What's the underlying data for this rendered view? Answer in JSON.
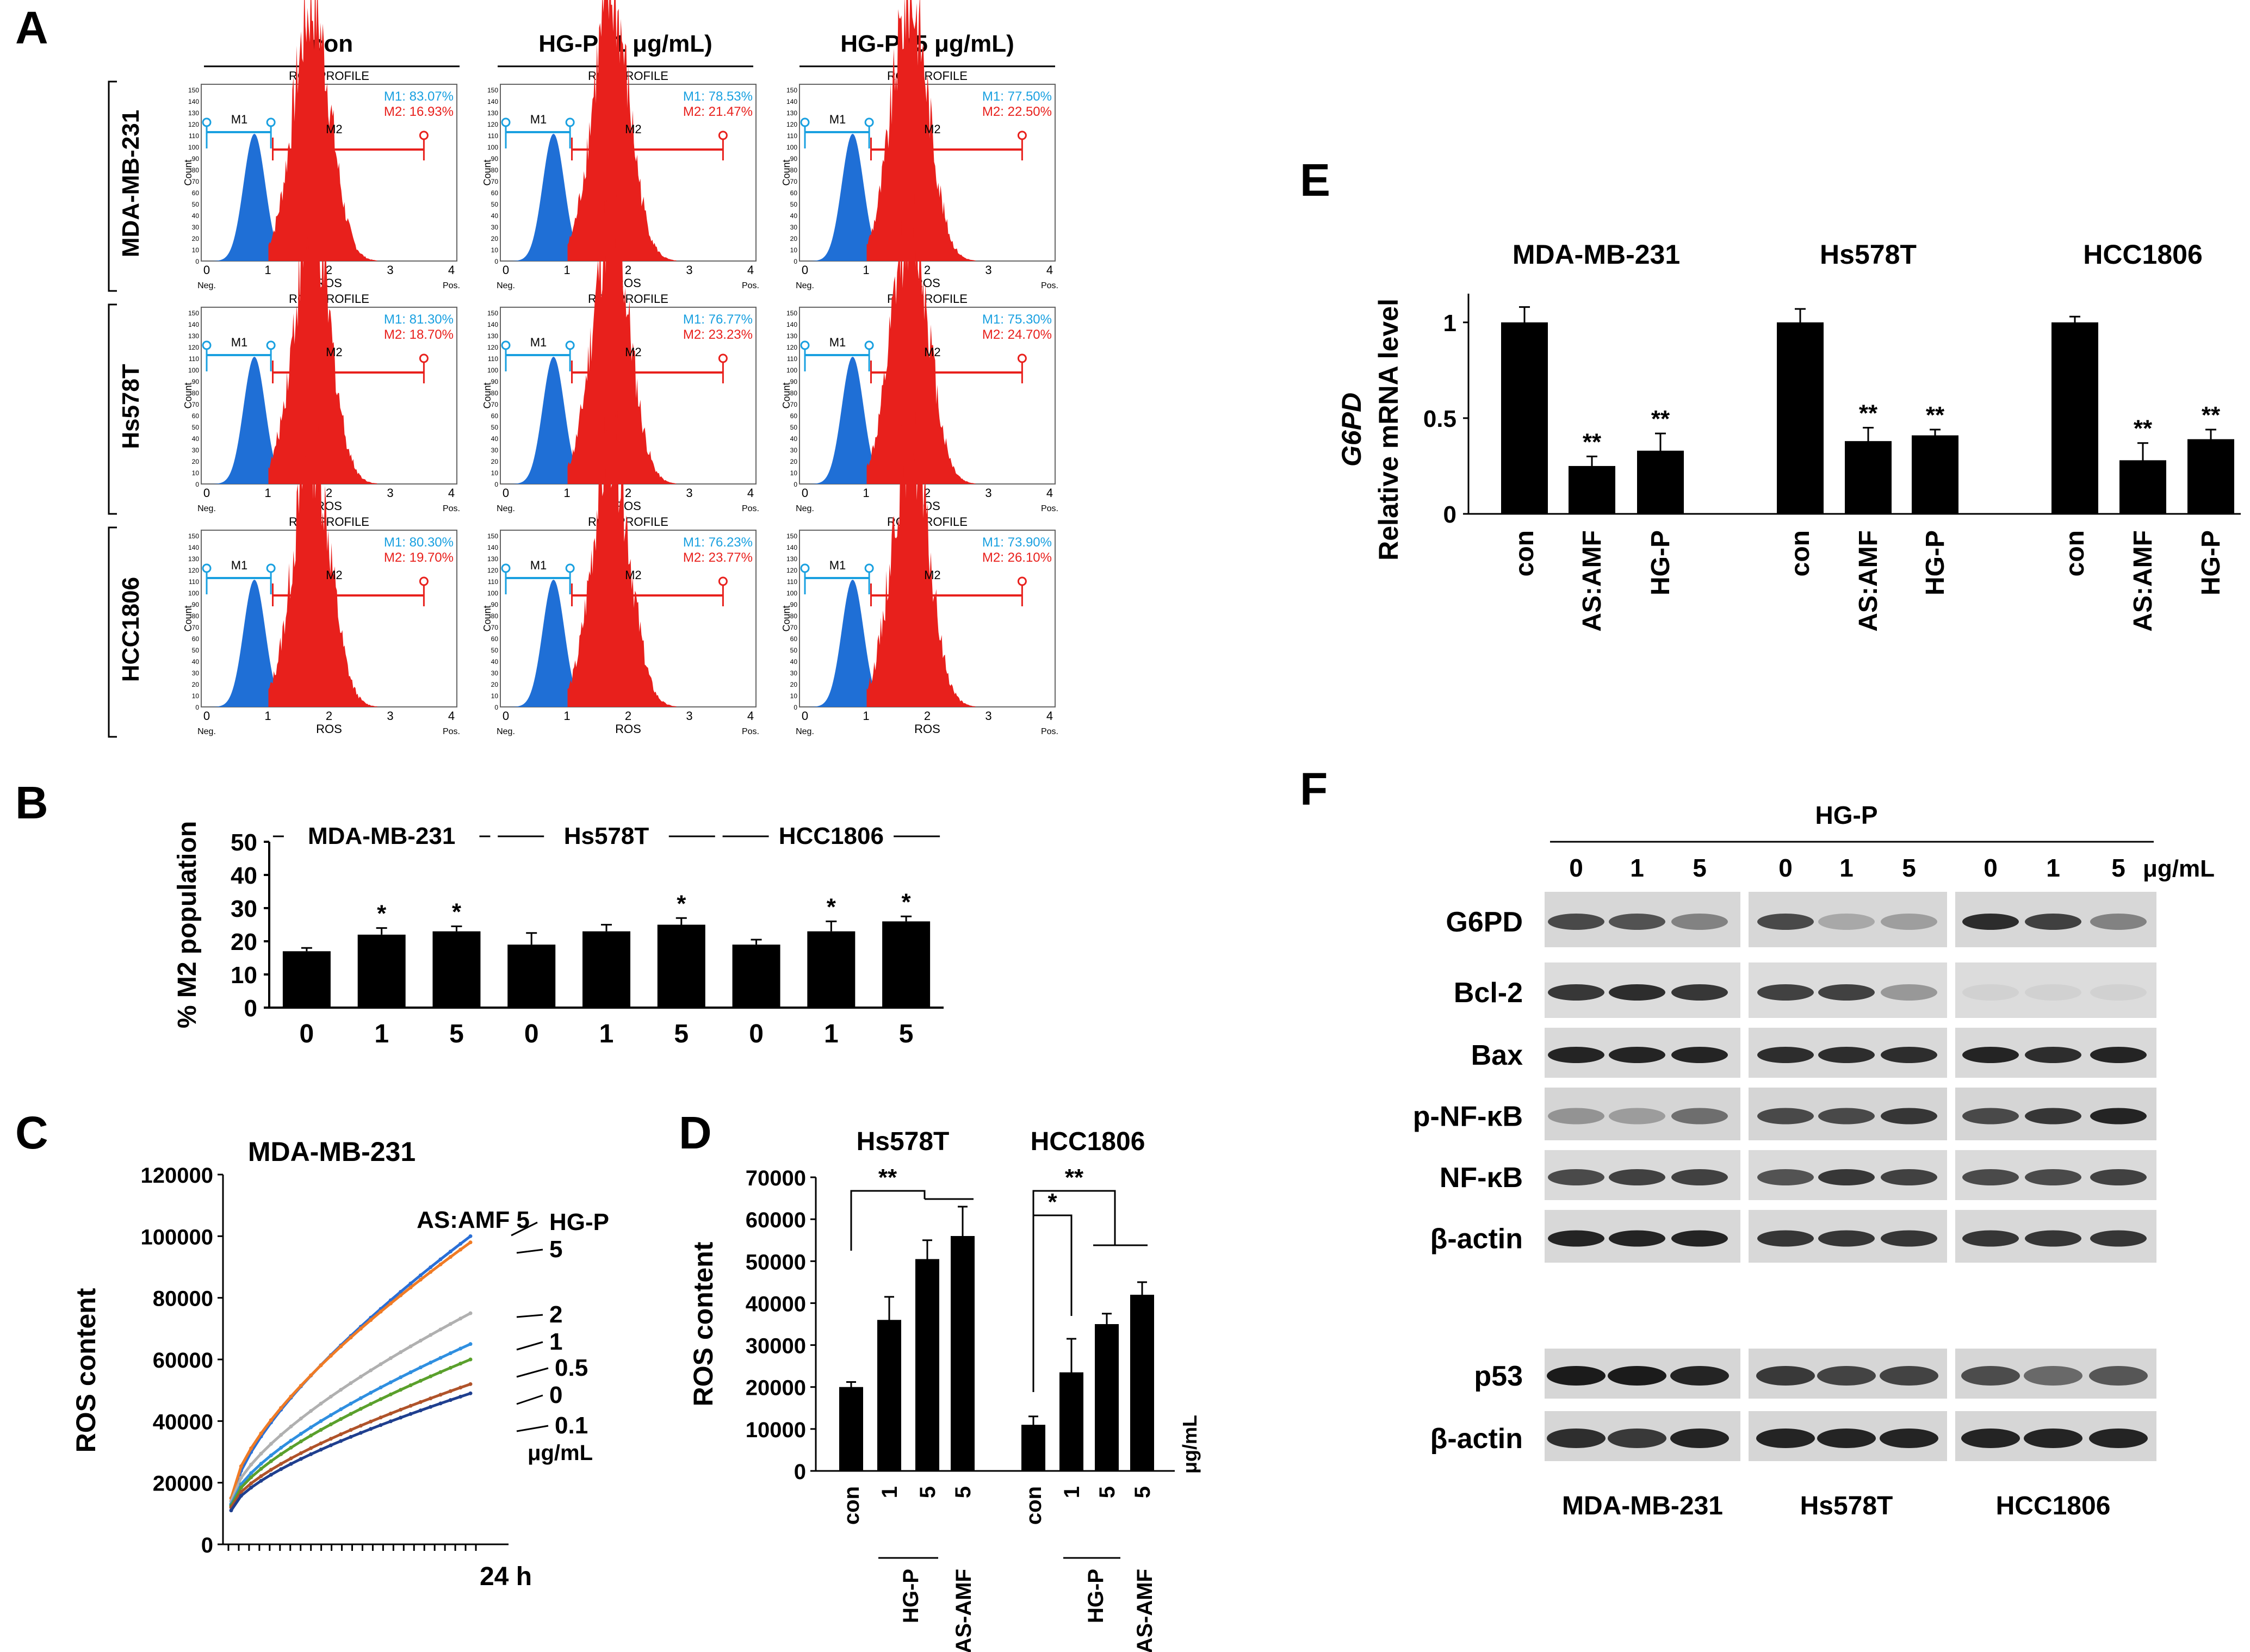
{
  "colors": {
    "blue": "#1f6fd6",
    "red": "#e8201c",
    "cyan": "#19a0e0",
    "black": "#000000",
    "gray": "#999999",
    "orange": "#f07b25",
    "green": "#5aa02c",
    "silver": "#b0b0b0",
    "brown": "#a0522d",
    "navy": "#1f3f8f"
  },
  "panelA": {
    "label": "A",
    "columns": [
      "con",
      "HG-P (1 μg/mL)",
      "HG-P (5 μg/mL)"
    ],
    "rows": [
      "MDA-MB-231",
      "Hs578T",
      "HCC1806"
    ],
    "profile_title": "ROS PROFILE",
    "xlabel": "ROS",
    "ylabel": "Count",
    "x_ticks": [
      "0",
      "1",
      "2",
      "3",
      "4"
    ],
    "neg": "Neg.",
    "pos": "Pos.",
    "m1": "M1",
    "m2": "M2",
    "stats": [
      [
        "M1: 83.07%",
        "M2: 16.93%",
        "M1: 78.53%",
        "M2: 21.47%",
        "M1: 77.50%",
        "M2: 22.50%"
      ],
      [
        "M1: 81.30%",
        "M2: 18.70%",
        "M1: 76.77%",
        "M2: 23.23%",
        "M1: 75.30%",
        "M2: 24.70%"
      ],
      [
        "M1: 80.30%",
        "M2: 19.70%",
        "M1: 76.23%",
        "M2: 23.77%",
        "M1: 73.90%",
        "M2: 26.10%"
      ]
    ]
  },
  "chart_data": [
    {
      "panel": "B",
      "type": "bar",
      "ylabel": "% M2 population",
      "ylim": [
        0,
        50
      ],
      "yticks": [
        "0",
        "10",
        "20",
        "30",
        "40",
        "50"
      ],
      "groups": [
        "MDA-MB-231",
        "Hs578T",
        "HCC1806"
      ],
      "categories": [
        "0",
        "1",
        "5",
        "0",
        "1",
        "5",
        "0",
        "1",
        "5"
      ],
      "values": [
        17,
        22,
        23,
        19,
        23,
        25,
        19,
        23,
        26
      ],
      "errors": [
        1,
        2,
        1.5,
        3.5,
        2,
        2,
        1.5,
        3,
        1.5
      ],
      "sig": [
        "",
        "*",
        "*",
        "",
        "",
        "*",
        "",
        "*",
        "*"
      ]
    },
    {
      "panel": "C",
      "type": "line",
      "title": "MDA-MB-231",
      "ylabel": "ROS content",
      "xlabel": "24 h",
      "ylim": [
        0,
        120000
      ],
      "yticks": [
        "0",
        "20000",
        "40000",
        "60000",
        "80000",
        "100000",
        "120000"
      ],
      "series": [
        {
          "name": "AS:AMF 5",
          "start": 13000,
          "end": 100000
        },
        {
          "name": "5",
          "start": 15000,
          "end": 98000
        },
        {
          "name": "2",
          "start": 14000,
          "end": 75000
        },
        {
          "name": "1",
          "start": 13000,
          "end": 65000
        },
        {
          "name": "0.5",
          "start": 12500,
          "end": 60000
        },
        {
          "name": "0",
          "start": 12000,
          "end": 52000
        },
        {
          "name": "0.1",
          "start": 11000,
          "end": 49000
        }
      ],
      "legend_title": "HG-P",
      "unit": "μg/mL"
    },
    {
      "panel": "D",
      "type": "bar",
      "ylabel": "ROS content",
      "ylim": [
        0,
        70000
      ],
      "yticks": [
        "0",
        "10000",
        "20000",
        "30000",
        "40000",
        "50000",
        "60000",
        "70000"
      ],
      "groups": [
        "Hs578T",
        "HCC1806"
      ],
      "categories": [
        "con",
        "1",
        "5",
        "5",
        "con",
        "1",
        "5",
        "5"
      ],
      "values": [
        20000,
        36000,
        50500,
        56000,
        11000,
        23500,
        35000,
        42000
      ],
      "errors": [
        1200,
        5500,
        4500,
        7000,
        2000,
        8000,
        2500,
        3000
      ],
      "sig_labels": [
        "**",
        "*",
        "**"
      ],
      "treatment_labels": [
        "HG-P",
        "AS-AMF"
      ],
      "unit": "μg/mL"
    },
    {
      "panel": "E",
      "type": "bar",
      "ylabel_italic": "G6PD",
      "ylabel": "Relative mRNA level",
      "ylim": [
        0,
        1.15
      ],
      "yticks": [
        "0",
        "0.5",
        "1"
      ],
      "groups": [
        "MDA-MB-231",
        "Hs578T",
        "HCC1806"
      ],
      "categories": [
        "con",
        "AS:AMF",
        "HG-P",
        "con",
        "AS:AMF",
        "HG-P",
        "con",
        "AS:AMF",
        "HG-P"
      ],
      "values": [
        1.0,
        0.25,
        0.33,
        1.0,
        0.38,
        0.41,
        1.0,
        0.28,
        0.39
      ],
      "errors": [
        0.08,
        0.05,
        0.09,
        0.07,
        0.07,
        0.03,
        0.03,
        0.09,
        0.05
      ],
      "sig": [
        "",
        "**",
        "**",
        "",
        "**",
        "**",
        "",
        "**",
        "**"
      ]
    }
  ],
  "panelB": {
    "label": "B"
  },
  "panelC": {
    "label": "C"
  },
  "panelD": {
    "label": "D"
  },
  "panelE": {
    "label": "E"
  },
  "panelF": {
    "label": "F",
    "treatment": "HG-P",
    "doses": [
      "0",
      "1",
      "5"
    ],
    "unit": "μg/mL",
    "proteins": [
      "G6PD",
      "Bcl-2",
      "Bax",
      "p-NF-κB",
      "NF-κB",
      "β-actin"
    ],
    "proteins2": [
      "p53",
      "β-actin"
    ],
    "cells": [
      "MDA-MB-231",
      "Hs578T",
      "HCC1806"
    ]
  }
}
